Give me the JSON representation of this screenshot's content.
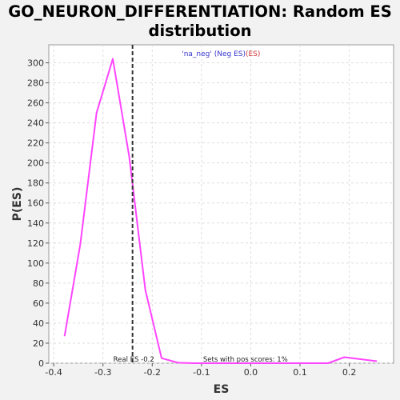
{
  "chart_data": {
    "type": "line",
    "title_line1": "GO_NEURON_DIFFERENTIATION: Random ES",
    "title_line2": "distribution",
    "xlabel": "ES",
    "ylabel": "P(ES)",
    "xlim": [
      -0.41,
      0.29
    ],
    "ylim": [
      0,
      318
    ],
    "xticks": [
      -0.4,
      -0.3,
      -0.2,
      -0.1,
      0.0,
      0.1,
      0.2
    ],
    "xtick_labels": [
      "-0.4",
      "-0.3",
      "-0.2",
      "-0.1",
      "0.0",
      "0.1",
      "0.2"
    ],
    "yticks": [
      0,
      20,
      40,
      60,
      80,
      100,
      120,
      140,
      160,
      180,
      200,
      220,
      240,
      260,
      280,
      300
    ],
    "ytick_labels": [
      "0",
      "20",
      "40",
      "60",
      "80",
      "100",
      "120",
      "140",
      "160",
      "180",
      "200",
      "220",
      "240",
      "260",
      "280",
      "300"
    ],
    "grid": true,
    "series": [
      {
        "color": "#ff44ff",
        "x": [
          -0.378,
          -0.346,
          -0.313,
          -0.28,
          -0.247,
          -0.214,
          -0.181,
          -0.148,
          -0.115,
          -0.082,
          -0.049,
          -0.016,
          0.017,
          0.05,
          0.083,
          0.116,
          0.157,
          0.19,
          0.256
        ],
        "y": [
          27,
          119,
          250,
          304,
          207,
          73,
          5,
          0.5,
          0,
          0,
          0,
          0,
          0,
          0,
          0,
          0,
          0,
          6,
          2
        ]
      }
    ],
    "real_es": -0.24,
    "real_es_color": "#333333",
    "annotations": {
      "real_es_label": "Real ES -0.2",
      "pos_scores_label": "Sets with pos scores: 1%",
      "legend_part1": "'na_neg' (Neg ES)",
      "legend_part2": "(ES)",
      "legend_color1": "#3333cc",
      "legend_color2": "#cc3333"
    }
  }
}
